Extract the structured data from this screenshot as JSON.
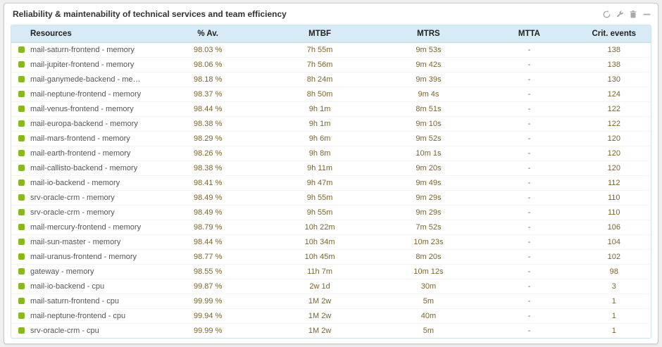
{
  "panel": {
    "title": "Reliability & maintenability of technical services and team efficiency",
    "toolbar": {
      "refresh": "refresh",
      "settings": "wrench",
      "delete": "trash",
      "collapse": "minimize"
    }
  },
  "table": {
    "columns": [
      "Resources",
      "% Av.",
      "MTBF",
      "MTRS",
      "MTTA",
      "Crit. events"
    ],
    "rows": [
      {
        "resource": "mail-saturn-frontend - memory",
        "availability": "98.03 %",
        "mtbf": "7h 55m",
        "mtrs": "9m 53s",
        "mtta": "-",
        "crit_events": "138"
      },
      {
        "resource": "mail-jupiter-frontend - memory",
        "availability": "98.06 %",
        "mtbf": "7h 56m",
        "mtrs": "9m 42s",
        "mtta": "-",
        "crit_events": "138"
      },
      {
        "resource": "mail-ganymede-backend - memory",
        "availability": "98.18 %",
        "mtbf": "8h 24m",
        "mtrs": "9m 39s",
        "mtta": "-",
        "crit_events": "130"
      },
      {
        "resource": "mail-neptune-frontend - memory",
        "availability": "98.37 %",
        "mtbf": "8h 50m",
        "mtrs": "9m 4s",
        "mtta": "-",
        "crit_events": "124"
      },
      {
        "resource": "mail-venus-frontend - memory",
        "availability": "98.44 %",
        "mtbf": "9h 1m",
        "mtrs": "8m 51s",
        "mtta": "-",
        "crit_events": "122"
      },
      {
        "resource": "mail-europa-backend - memory",
        "availability": "98.38 %",
        "mtbf": "9h 1m",
        "mtrs": "9m 10s",
        "mtta": "-",
        "crit_events": "122"
      },
      {
        "resource": "mail-mars-frontend - memory",
        "availability": "98.29 %",
        "mtbf": "9h 6m",
        "mtrs": "9m 52s",
        "mtta": "-",
        "crit_events": "120"
      },
      {
        "resource": "mail-earth-frontend - memory",
        "availability": "98.26 %",
        "mtbf": "9h 8m",
        "mtrs": "10m 1s",
        "mtta": "-",
        "crit_events": "120"
      },
      {
        "resource": "mail-callisto-backend - memory",
        "availability": "98.38 %",
        "mtbf": "9h 11m",
        "mtrs": "9m 20s",
        "mtta": "-",
        "crit_events": "120"
      },
      {
        "resource": "mail-io-backend - memory",
        "availability": "98.41 %",
        "mtbf": "9h 47m",
        "mtrs": "9m 49s",
        "mtta": "-",
        "crit_events": "112"
      },
      {
        "resource": "srv-oracle-crm - memory",
        "availability": "98.49 %",
        "mtbf": "9h 55m",
        "mtrs": "9m 29s",
        "mtta": "-",
        "crit_events": "110"
      },
      {
        "resource": "srv-oracle-crm - memory",
        "availability": "98.49 %",
        "mtbf": "9h 55m",
        "mtrs": "9m 29s",
        "mtta": "-",
        "crit_events": "110"
      },
      {
        "resource": "mail-mercury-frontend - memory",
        "availability": "98.79 %",
        "mtbf": "10h 22m",
        "mtrs": "7m 52s",
        "mtta": "-",
        "crit_events": "106"
      },
      {
        "resource": "mail-sun-master - memory",
        "availability": "98.44 %",
        "mtbf": "10h 34m",
        "mtrs": "10m 23s",
        "mtta": "-",
        "crit_events": "104"
      },
      {
        "resource": "mail-uranus-frontend - memory",
        "availability": "98.77 %",
        "mtbf": "10h 45m",
        "mtrs": "8m 20s",
        "mtta": "-",
        "crit_events": "102"
      },
      {
        "resource": "gateway - memory",
        "availability": "98.55 %",
        "mtbf": "11h 7m",
        "mtrs": "10m 12s",
        "mtta": "-",
        "crit_events": "98"
      },
      {
        "resource": "mail-io-backend - cpu",
        "availability": "99.87 %",
        "mtbf": "2w 1d",
        "mtrs": "30m",
        "mtta": "-",
        "crit_events": "3"
      },
      {
        "resource": "mail-saturn-frontend - cpu",
        "availability": "99.99 %",
        "mtbf": "1M 2w",
        "mtrs": "5m",
        "mtta": "-",
        "crit_events": "1"
      },
      {
        "resource": "mail-neptune-frontend - cpu",
        "availability": "99.94 %",
        "mtbf": "1M 2w",
        "mtrs": "40m",
        "mtta": "-",
        "crit_events": "1"
      },
      {
        "resource": "srv-oracle-crm - cpu",
        "availability": "99.99 %",
        "mtbf": "1M 2w",
        "mtrs": "5m",
        "mtta": "-",
        "crit_events": "1"
      }
    ]
  },
  "colors": {
    "status_ok": "#88b917",
    "header_bg": "#d6ebf5",
    "value_text": "#7c6528"
  }
}
